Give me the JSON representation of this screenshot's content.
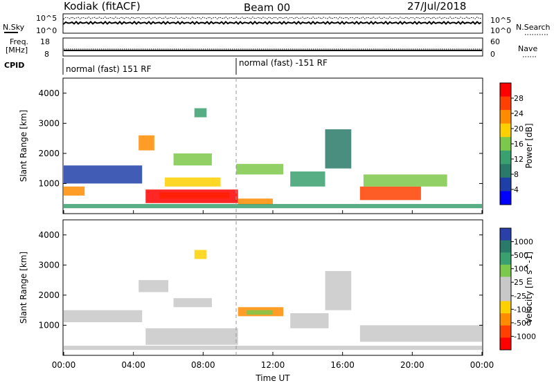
{
  "header": {
    "station": "Kodiak (fitACF)",
    "beam": "Beam 00",
    "date": "27/Jul/2018"
  },
  "top_panels": {
    "nsky_label": "N.Sky",
    "nsky_ticks_left": [
      "10^5",
      "10^0"
    ],
    "nsearch_label": "N.Search",
    "nsearch_ticks_right": [
      "10^5",
      "10^0"
    ],
    "freq_label_1": "Freq.",
    "freq_label_2": "[MHz]",
    "freq_ticks": [
      "18",
      "8"
    ],
    "nave_label": "Nave",
    "nave_ticks": [
      "60",
      "0"
    ],
    "cpid_label": "CPID",
    "cpid_segments": [
      "normal (fast) 151 RF",
      "normal (fast) -151 RF"
    ]
  },
  "chart_data": [
    {
      "type": "heatmap",
      "title": "",
      "ylabel": "Slant Range [km]",
      "xlabel": "",
      "y_ticks": [
        "4000",
        "3000",
        "2000",
        "1000"
      ],
      "colorbar_label": "Power [dB]",
      "colorbar_ticks": [
        "28",
        "24",
        "20",
        "16",
        "12",
        "8",
        "4"
      ],
      "colorbar_colors": [
        "#ff0000",
        "#ff4000",
        "#ff8c00",
        "#ffd000",
        "#7cc84a",
        "#3aa070",
        "#2a7a6a",
        "#1f3fa8",
        "#0000ff"
      ],
      "regions": [
        {
          "t0": 4.7,
          "t1": 10.0,
          "r0": 350,
          "r1": 800,
          "color": "#ff0000"
        },
        {
          "t0": 5.5,
          "t1": 9.5,
          "r0": 500,
          "r1": 700,
          "color": "#ff2000"
        },
        {
          "t0": 17.0,
          "t1": 20.5,
          "r0": 450,
          "r1": 900,
          "color": "#ff4000"
        },
        {
          "t0": 10.0,
          "t1": 12.0,
          "r0": 300,
          "r1": 500,
          "color": "#ff8c00"
        },
        {
          "t0": 0.0,
          "t1": 1.2,
          "r0": 600,
          "r1": 900,
          "color": "#ff8c00"
        },
        {
          "t0": 5.8,
          "t1": 9.0,
          "r0": 900,
          "r1": 1200,
          "color": "#ffd000"
        },
        {
          "t0": 6.3,
          "t1": 8.5,
          "r0": 1600,
          "r1": 2000,
          "color": "#7cc84a"
        },
        {
          "t0": 9.9,
          "t1": 12.6,
          "r0": 1300,
          "r1": 1650,
          "color": "#7cc84a"
        },
        {
          "t0": 13.0,
          "t1": 15.0,
          "r0": 900,
          "r1": 1400,
          "color": "#3aa070"
        },
        {
          "t0": 15.0,
          "t1": 16.5,
          "r0": 1500,
          "r1": 2800,
          "color": "#2a7a6a"
        },
        {
          "t0": 17.2,
          "t1": 22.0,
          "r0": 900,
          "r1": 1300,
          "color": "#7cc84a"
        },
        {
          "t0": 0.0,
          "t1": 4.5,
          "r0": 1000,
          "r1": 1600,
          "color": "#1f3fa8"
        },
        {
          "t0": 4.3,
          "t1": 5.2,
          "r0": 2100,
          "r1": 2600,
          "color": "#ff8c00"
        },
        {
          "t0": 7.5,
          "t1": 8.2,
          "r0": 3200,
          "r1": 3500,
          "color": "#3aa070"
        },
        {
          "t0": 0.0,
          "t1": 24.0,
          "r0": 180,
          "r1": 320,
          "color": "#3aa070"
        }
      ]
    },
    {
      "type": "heatmap",
      "title": "",
      "ylabel": "Slant Range [km]",
      "xlabel": "Time UT",
      "y_ticks": [
        "4000",
        "3000",
        "2000",
        "1000"
      ],
      "x_ticks": [
        "00:00",
        "04:00",
        "08:00",
        "12:00",
        "16:00",
        "20:00",
        "00:00"
      ],
      "colorbar_label": "Velocity [m s^-1]",
      "colorbar_ticks": [
        "1000",
        "500",
        "100",
        "25",
        "-25",
        "-100",
        "-500",
        "-1000"
      ],
      "colorbar_colors": [
        "#2a3fa8",
        "#2a7a6a",
        "#3aa070",
        "#7cc84a",
        "#c8c8c8",
        "#c8c8c8",
        "#ffd000",
        "#ff8c00",
        "#ff4000",
        "#ff0000"
      ],
      "regions": [
        {
          "t0": 4.7,
          "t1": 10.0,
          "r0": 350,
          "r1": 900,
          "color": "#c8c8c8"
        },
        {
          "t0": 17.0,
          "t1": 24.0,
          "r0": 450,
          "r1": 1000,
          "color": "#c8c8c8"
        },
        {
          "t0": 13.0,
          "t1": 15.2,
          "r0": 900,
          "r1": 1400,
          "color": "#c8c8c8"
        },
        {
          "t0": 0.0,
          "t1": 4.5,
          "r0": 1100,
          "r1": 1500,
          "color": "#c8c8c8"
        },
        {
          "t0": 4.3,
          "t1": 6.0,
          "r0": 2100,
          "r1": 2500,
          "color": "#c8c8c8"
        },
        {
          "t0": 10.0,
          "t1": 12.6,
          "r0": 1300,
          "r1": 1600,
          "color": "#ff8c00"
        },
        {
          "t0": 10.5,
          "t1": 12.0,
          "r0": 1350,
          "r1": 1500,
          "color": "#7cc84a"
        },
        {
          "t0": 6.3,
          "t1": 8.5,
          "r0": 1600,
          "r1": 1900,
          "color": "#c8c8c8"
        },
        {
          "t0": 15.0,
          "t1": 16.5,
          "r0": 1500,
          "r1": 2800,
          "color": "#c8c8c8"
        },
        {
          "t0": 7.5,
          "t1": 8.2,
          "r0": 3200,
          "r1": 3500,
          "color": "#ffd000"
        },
        {
          "t0": 0.0,
          "t1": 24.0,
          "r0": 180,
          "r1": 320,
          "color": "#c8c8c8"
        }
      ]
    }
  ]
}
